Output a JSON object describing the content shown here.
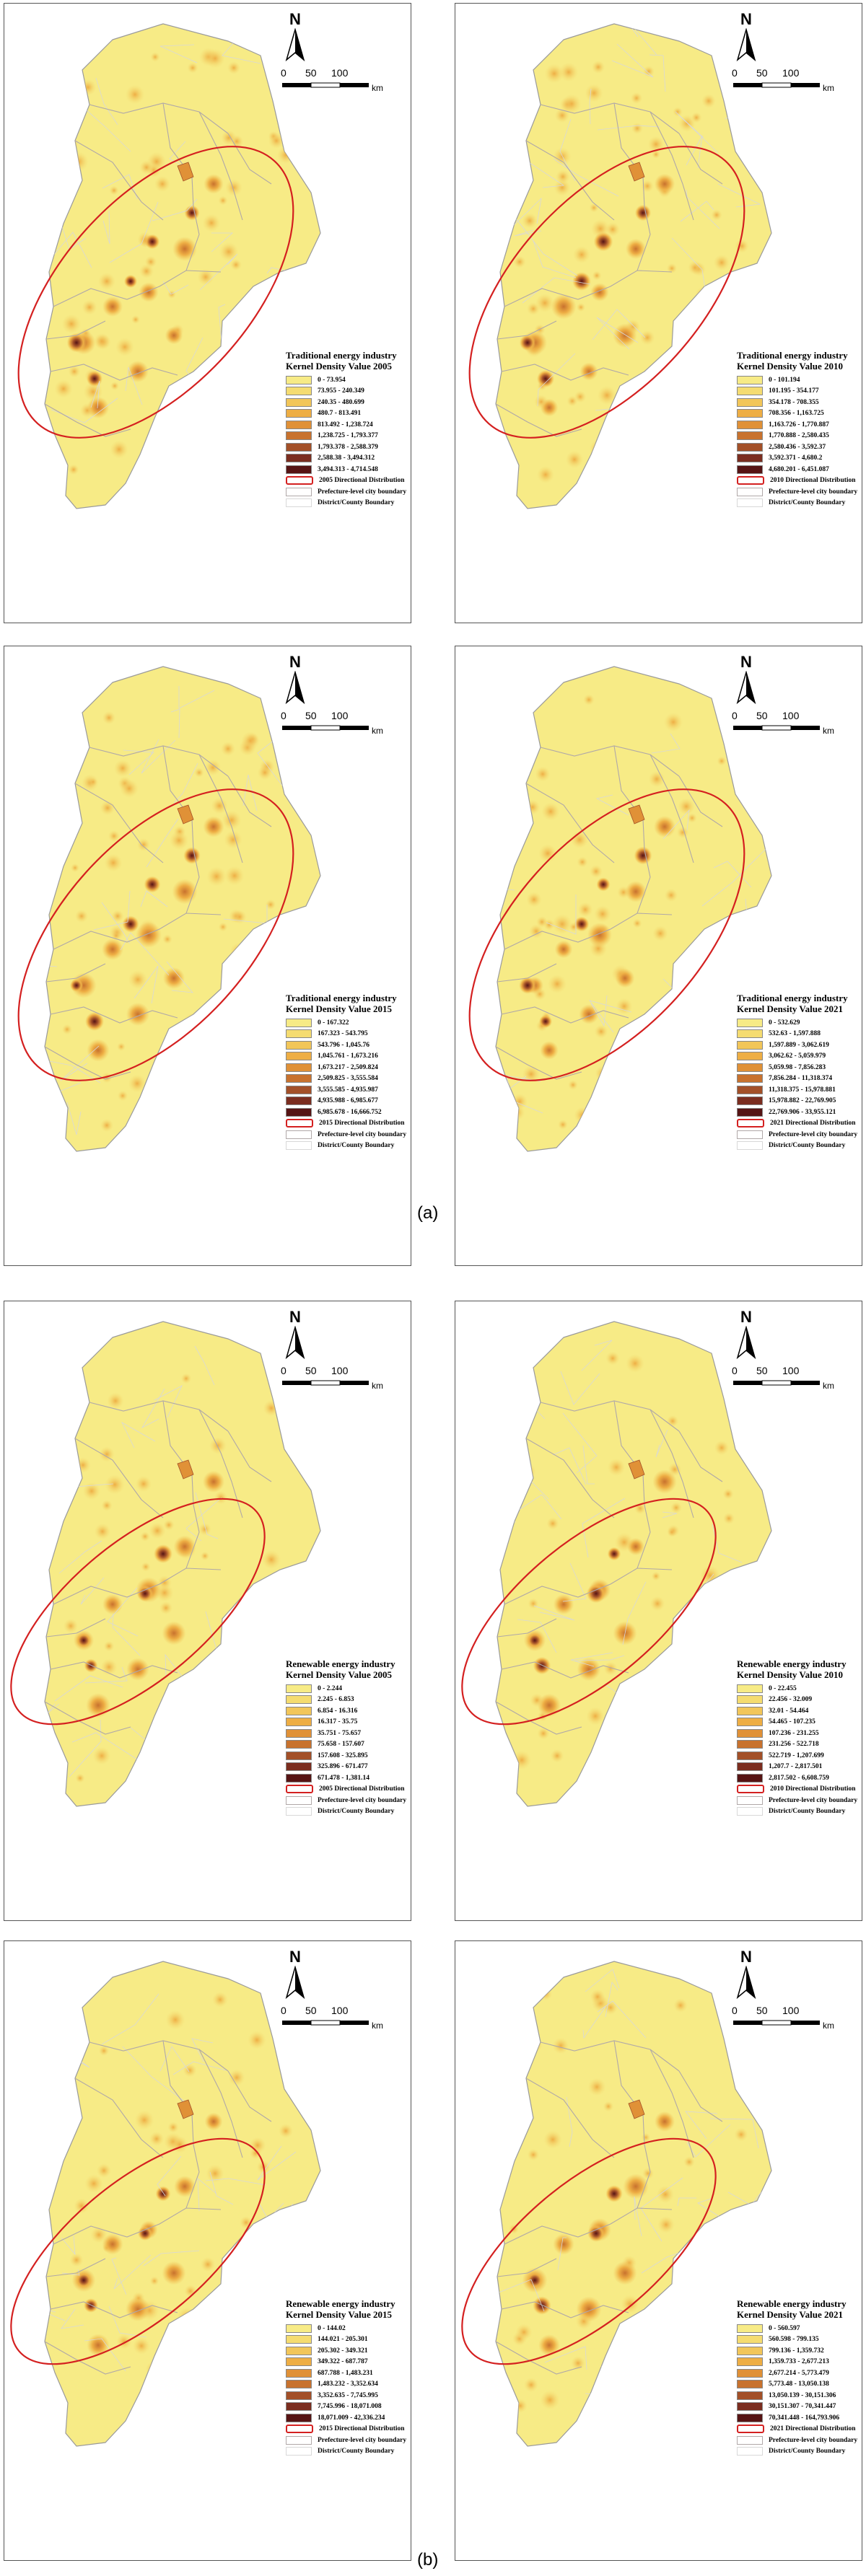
{
  "figure_labels": {
    "a": "(a)",
    "b": "(b)"
  },
  "north_label": "N",
  "scale": {
    "ticks": [
      "0",
      "50",
      "100"
    ],
    "unit": "km"
  },
  "colors": {
    "ellipse": "#d42020",
    "prefecture_boundary": "#b0a8a8",
    "district_boundary": "#d8d8d8",
    "ramp": [
      "#f7eb86",
      "#f5dc70",
      "#f2c659",
      "#eeae44",
      "#e09137",
      "#c8722e",
      "#a35028",
      "#7b2d1f",
      "#561414"
    ]
  },
  "panels": [
    {
      "title_line1": "Traditional energy industry",
      "title_line2": "Kernel Density Value 2005",
      "classes": [
        "0 - 73.954",
        "73.955 - 240.349",
        "240.35 - 480.699",
        "480.7 - 813.491",
        "813.492 - 1,238.724",
        "1,238.725 - 1,793.377",
        "1,793.378 - 2,588.379",
        "2,588.38 - 3,494.312",
        "3,494.313 - 4,714.548"
      ],
      "ellipse_label": "2005 Directional Distribution",
      "pref_label": "Prefecture-level city boundary",
      "district_label": "District/County Boundary"
    },
    {
      "title_line1": "Traditional energy industry",
      "title_line2": "Kernel Density Value 2010",
      "classes": [
        "0 - 101.194",
        "101.195 - 354.177",
        "354.178 - 708.355",
        "708.356 - 1,163.725",
        "1,163.726 - 1,770.887",
        "1,770.888 - 2,580.435",
        "2,580.436 - 3,592.37",
        "3,592.371 - 4,680.2",
        "4,680.201 - 6,451.087"
      ],
      "ellipse_label": "2010 Directional Distribution",
      "pref_label": "Prefecture-level city boundary",
      "district_label": "District/County Boundary"
    },
    {
      "title_line1": "Traditional energy industry",
      "title_line2": "Kernel Density Value 2015",
      "classes": [
        "0 - 167.322",
        "167.323 - 543.795",
        "543.796 - 1,045.76",
        "1,045.761 - 1,673.216",
        "1,673.217 - 2,509.824",
        "2,509.825 - 3,555.584",
        "3,555.585 - 4,935.987",
        "4,935.988 - 6,985.677",
        "6,985.678 - 16,666.752"
      ],
      "ellipse_label": "2015 Directional Distribution",
      "pref_label": "Prefecture-level city boundary",
      "district_label": "District/County Boundary"
    },
    {
      "title_line1": "Traditional energy industry",
      "title_line2": "Kernel Density Value 2021",
      "classes": [
        "0 - 532.629",
        "532.63 - 1,597.888",
        "1,597.889 - 3,062.619",
        "3,062.62 - 5,059.979",
        "5,059.98 - 7,856.283",
        "7,856.284 - 11,318.374",
        "11,318.375 - 15,978.881",
        "15,978.882 - 22,769.905",
        "22,769.906 - 33,955.121"
      ],
      "ellipse_label": "2021 Directional Distribution",
      "pref_label": "Prefecture-level city boundary",
      "district_label": "District/County Boundary"
    },
    {
      "title_line1": "Renewable energy industry",
      "title_line2": "Kernel Density Value 2005",
      "classes": [
        "0 - 2.244",
        "2.245 - 6.853",
        "6.854 - 16.316",
        "16.317 - 35.75",
        "35.751 - 75.657",
        "75.658 - 157.607",
        "157.608 - 325.895",
        "325.896 - 671.477",
        "671.478 - 1,381.14"
      ],
      "ellipse_label": "2005 Directional Distribution",
      "pref_label": "Prefecture-level city boundary",
      "district_label": "District/County Boundary"
    },
    {
      "title_line1": "Renewable energy industry",
      "title_line2": "Kernel Density Value 2010",
      "classes": [
        "0 - 22.455",
        "22.456 - 32.009",
        "32.01 - 54.464",
        "54.465 - 107.235",
        "107.236 - 231.255",
        "231.256 - 522.718",
        "522.719 - 1,207.699",
        "1,207.7 - 2,817.501",
        "2,817.502 - 6,608.759"
      ],
      "ellipse_label": "2010 Directional Distribution",
      "pref_label": "Prefecture-level city boundary",
      "district_label": "District/County Boundary"
    },
    {
      "title_line1": "Renewable energy industry",
      "title_line2": "Kernel Density Value 2015",
      "classes": [
        "0 - 144.02",
        "144.021 - 205.301",
        "205.302 - 349.321",
        "349.322 - 687.787",
        "687.788 - 1,483.231",
        "1,483.232 - 3,352.634",
        "3,352.635 - 7,745.995",
        "7,745.996 - 18,071.008",
        "18,071.009 - 42,336.234"
      ],
      "ellipse_label": "2015 Directional Distribution",
      "pref_label": "Prefecture-level city boundary",
      "district_label": "District/County Boundary"
    },
    {
      "title_line1": "Renewable energy industry",
      "title_line2": "Kernel Density Value 2021",
      "classes": [
        "0 - 560.597",
        "560.598 - 799.135",
        "799.136 - 1,359.732",
        "1,359.733 - 2,677.213",
        "2,677.214 - 5,773.479",
        "5,773.48 - 13,050.138",
        "13,050.139 - 30,151.306",
        "30,151.307 - 70,341.447",
        "70,341.448 - 164,793.906"
      ],
      "ellipse_label": "2021 Directional Distribution",
      "pref_label": "Prefecture-level city boundary",
      "district_label": "District/County Boundary"
    }
  ]
}
